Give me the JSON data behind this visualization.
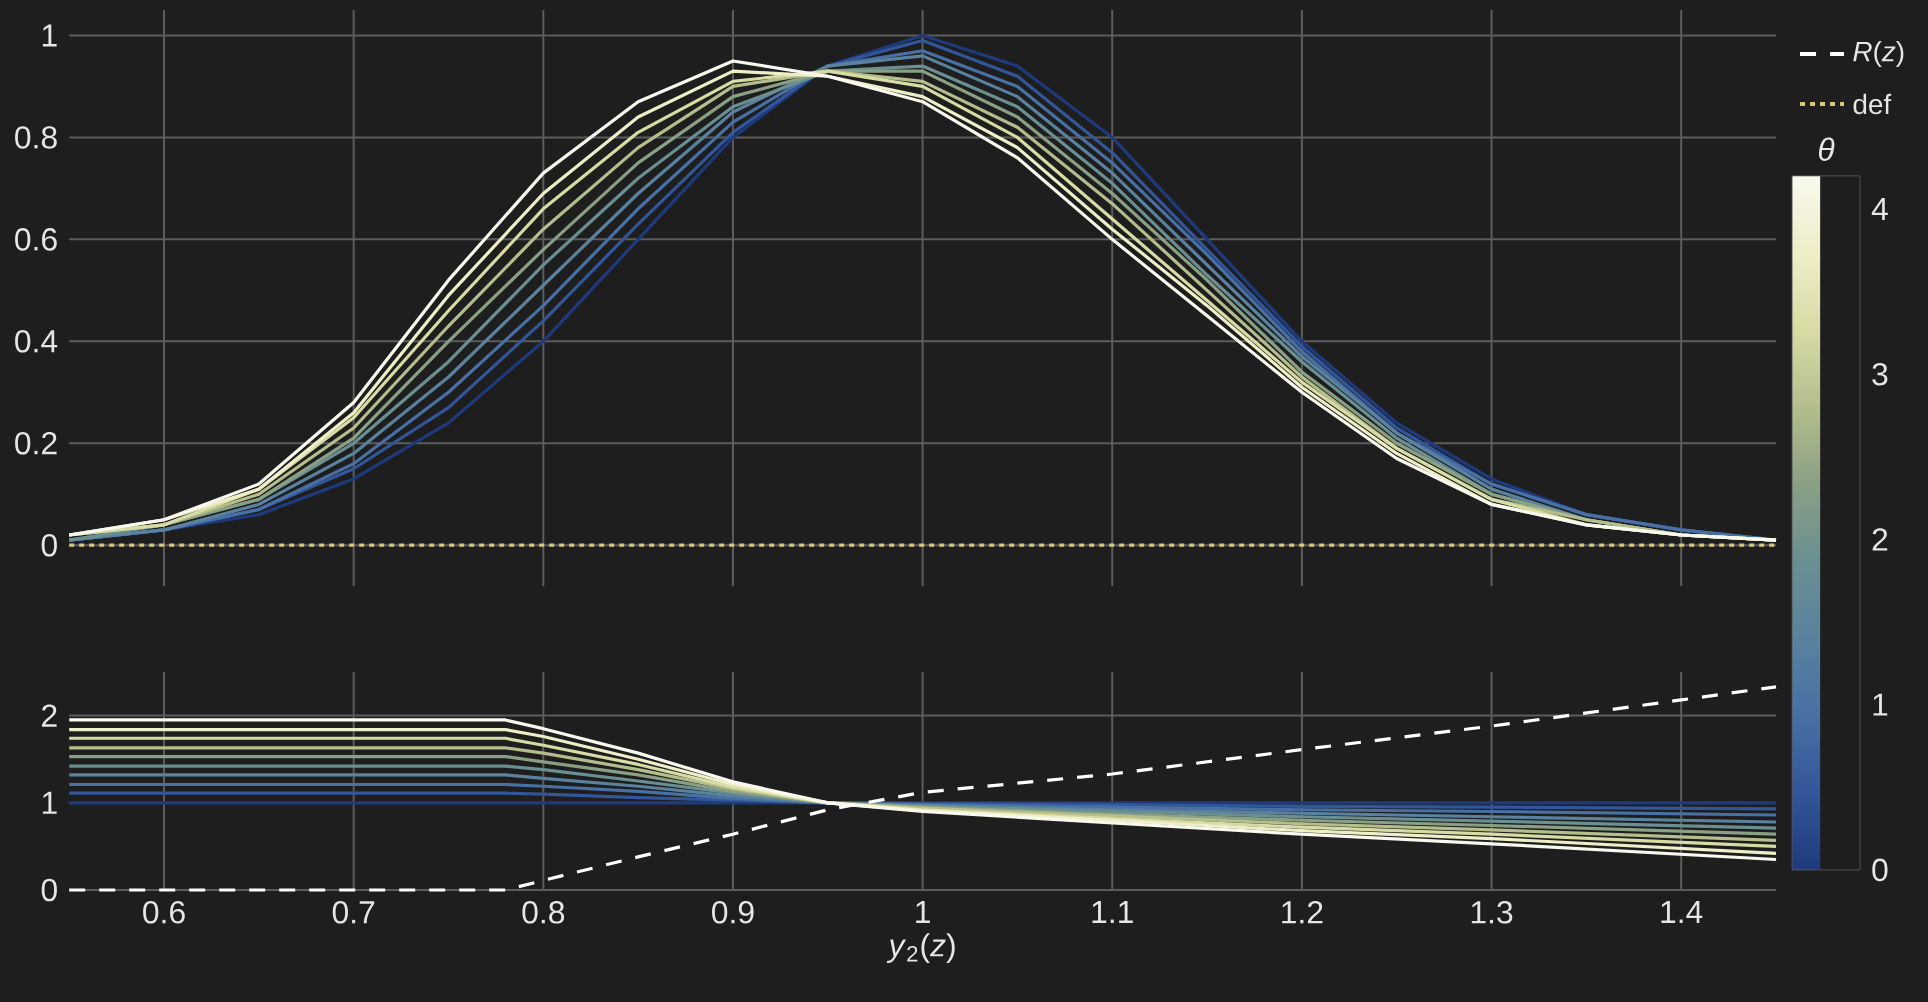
{
  "chart_data": [
    {
      "type": "line",
      "x": [
        0.55,
        0.6,
        0.65,
        0.7,
        0.75,
        0.8,
        0.85,
        0.9,
        0.95,
        1.0,
        1.05,
        1.1,
        1.15,
        1.2,
        1.25,
        1.3,
        1.35,
        1.4,
        1.45
      ],
      "series": [
        {
          "color": "#1e3a7c",
          "values": [
            0.01,
            0.03,
            0.06,
            0.13,
            0.24,
            0.4,
            0.6,
            0.8,
            0.94,
            1.0,
            0.94,
            0.8,
            0.6,
            0.4,
            0.24,
            0.13,
            0.06,
            0.03,
            0.01
          ]
        },
        {
          "color": "#32569a",
          "values": [
            0.01,
            0.03,
            0.07,
            0.15,
            0.27,
            0.44,
            0.63,
            0.81,
            0.94,
            0.99,
            0.92,
            0.77,
            0.58,
            0.39,
            0.23,
            0.12,
            0.06,
            0.03,
            0.01
          ]
        },
        {
          "color": "#4870a4",
          "values": [
            0.01,
            0.03,
            0.07,
            0.16,
            0.3,
            0.47,
            0.66,
            0.83,
            0.94,
            0.97,
            0.9,
            0.75,
            0.57,
            0.38,
            0.22,
            0.12,
            0.06,
            0.03,
            0.01
          ]
        },
        {
          "color": "#5a829e",
          "values": [
            0.01,
            0.03,
            0.08,
            0.18,
            0.33,
            0.51,
            0.69,
            0.85,
            0.94,
            0.96,
            0.88,
            0.73,
            0.55,
            0.37,
            0.22,
            0.11,
            0.05,
            0.02,
            0.01
          ]
        },
        {
          "color": "#6a8f92",
          "values": [
            0.01,
            0.04,
            0.09,
            0.2,
            0.36,
            0.55,
            0.72,
            0.86,
            0.93,
            0.94,
            0.86,
            0.71,
            0.53,
            0.36,
            0.21,
            0.1,
            0.05,
            0.02,
            0.01
          ]
        },
        {
          "color": "#8aa084",
          "values": [
            0.02,
            0.04,
            0.09,
            0.21,
            0.4,
            0.58,
            0.75,
            0.88,
            0.93,
            0.93,
            0.84,
            0.69,
            0.52,
            0.34,
            0.2,
            0.1,
            0.05,
            0.02,
            0.01
          ]
        },
        {
          "color": "#b4be8c",
          "values": [
            0.02,
            0.04,
            0.1,
            0.23,
            0.43,
            0.62,
            0.78,
            0.9,
            0.93,
            0.91,
            0.82,
            0.67,
            0.5,
            0.33,
            0.19,
            0.09,
            0.05,
            0.02,
            0.01
          ]
        },
        {
          "color": "#d8dba4",
          "values": [
            0.02,
            0.04,
            0.11,
            0.25,
            0.46,
            0.66,
            0.81,
            0.91,
            0.93,
            0.9,
            0.8,
            0.64,
            0.48,
            0.32,
            0.19,
            0.09,
            0.04,
            0.02,
            0.01
          ]
        },
        {
          "color": "#eeeec8",
          "values": [
            0.02,
            0.05,
            0.11,
            0.26,
            0.49,
            0.69,
            0.84,
            0.93,
            0.92,
            0.88,
            0.78,
            0.62,
            0.47,
            0.31,
            0.18,
            0.08,
            0.04,
            0.02,
            0.01
          ]
        },
        {
          "color": "#f8f8ee",
          "values": [
            0.02,
            0.05,
            0.12,
            0.28,
            0.52,
            0.73,
            0.87,
            0.95,
            0.92,
            0.87,
            0.76,
            0.6,
            0.45,
            0.3,
            0.17,
            0.08,
            0.04,
            0.02,
            0.01
          ]
        },
        {
          "name": "def",
          "color": "#d9c77a",
          "line_style": "dotted",
          "values": [
            0,
            0,
            0,
            0,
            0,
            0,
            0,
            0,
            0,
            0,
            0,
            0,
            0,
            0,
            0,
            0,
            0,
            0,
            0
          ]
        }
      ],
      "xlim": [
        0.55,
        1.45
      ],
      "xticks": [
        0.6,
        0.7,
        0.8,
        0.9,
        1,
        1.1,
        1.2,
        1.3,
        1.4
      ],
      "ylim": [
        -0.08,
        1.05
      ],
      "yticks": [
        0,
        0.2,
        0.4,
        0.6,
        0.8,
        1
      ],
      "grid": true,
      "tick_labels": "y",
      "legend": "right",
      "clabel": "*θ*",
      "clim": [
        0,
        4.2
      ],
      "cticks": [
        0,
        1,
        2,
        3,
        4
      ]
    },
    {
      "type": "line",
      "x": [
        0.55,
        0.78,
        0.8,
        0.85,
        0.9,
        0.95,
        1.0,
        1.1,
        1.2,
        1.3,
        1.45
      ],
      "series": [
        {
          "color": "#1e3a7c",
          "values": [
            1,
            1,
            1,
            1,
            1,
            1,
            1,
            1,
            1,
            1,
            1
          ]
        },
        {
          "color": "#32569a",
          "values": [
            1.11,
            1.11,
            1.1,
            1.06,
            1.03,
            1,
            0.99,
            0.98,
            0.96,
            0.95,
            0.93
          ]
        },
        {
          "color": "#4870a4",
          "values": [
            1.21,
            1.21,
            1.19,
            1.13,
            1.05,
            1,
            0.98,
            0.95,
            0.92,
            0.9,
            0.86
          ]
        },
        {
          "color": "#5a829e",
          "values": [
            1.32,
            1.32,
            1.28,
            1.19,
            1.08,
            1,
            0.97,
            0.92,
            0.88,
            0.84,
            0.78
          ]
        },
        {
          "color": "#6a8f92",
          "values": [
            1.42,
            1.42,
            1.38,
            1.25,
            1.11,
            1,
            0.96,
            0.9,
            0.84,
            0.79,
            0.71
          ]
        },
        {
          "color": "#8aa084",
          "values": [
            1.53,
            1.53,
            1.47,
            1.32,
            1.13,
            1,
            0.95,
            0.87,
            0.8,
            0.74,
            0.64
          ]
        },
        {
          "color": "#b4be8c",
          "values": [
            1.63,
            1.63,
            1.57,
            1.38,
            1.16,
            1,
            0.94,
            0.85,
            0.76,
            0.69,
            0.57
          ]
        },
        {
          "color": "#d8dba4",
          "values": [
            1.74,
            1.74,
            1.66,
            1.44,
            1.18,
            1,
            0.92,
            0.82,
            0.72,
            0.64,
            0.5
          ]
        },
        {
          "color": "#eeeec8",
          "values": [
            1.84,
            1.84,
            1.76,
            1.5,
            1.21,
            1,
            0.91,
            0.8,
            0.68,
            0.59,
            0.42
          ]
        },
        {
          "color": "#f8f8ee",
          "values": [
            1.95,
            1.95,
            1.85,
            1.57,
            1.24,
            1,
            0.9,
            0.77,
            0.64,
            0.53,
            0.35
          ]
        },
        {
          "name": "*R*(*z*)",
          "color": "#ffffff",
          "line_style": "dashed",
          "x": [
            0.55,
            0.78,
            0.8,
            0.85,
            0.9,
            0.95,
            1.0,
            1.1,
            1.2,
            1.3,
            1.4,
            1.45
          ],
          "values": [
            0,
            0,
            0.11,
            0.38,
            0.64,
            0.92,
            1.12,
            1.33,
            1.61,
            1.88,
            2.18,
            2.33
          ]
        }
      ],
      "xlim": [
        0.55,
        1.45
      ],
      "xticks": [
        0.6,
        0.7,
        0.8,
        0.9,
        1,
        1.1,
        1.2,
        1.3,
        1.4
      ],
      "ylim": [
        0,
        2.5
      ],
      "yticks": [
        0,
        1,
        2
      ],
      "xlabel": "*y*$_{2}$(*z*)",
      "grid": true
    }
  ]
}
